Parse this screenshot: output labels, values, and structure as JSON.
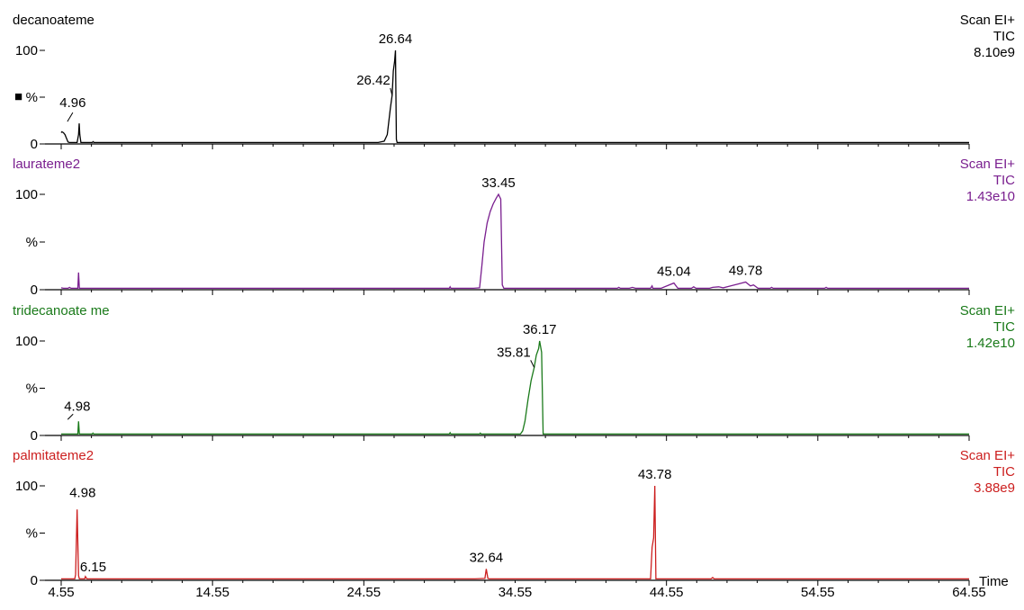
{
  "chart_data": {
    "type": "line",
    "x_axis": {
      "label": "Time",
      "min": 4.55,
      "max": 64.55,
      "ticks": [
        4.55,
        14.55,
        24.55,
        34.55,
        44.55,
        54.55,
        64.55
      ],
      "tick_labels": [
        "4.55",
        "14.55",
        "24.55",
        "34.55",
        "44.55",
        "54.55",
        "64.55"
      ]
    },
    "y_axis": {
      "min": 0,
      "max": 100,
      "tick_labels": [
        "100",
        "%",
        "0"
      ]
    },
    "marker_glyph": "■",
    "panels": [
      {
        "title": "decanoateme",
        "mode": "Scan EI+",
        "signal": "TIC",
        "intensity": "8.10e9",
        "color": "#000000",
        "trace": [
          [
            4.55,
            12
          ],
          [
            4.6,
            13
          ],
          [
            4.7,
            12
          ],
          [
            4.8,
            10
          ],
          [
            4.9,
            6
          ],
          [
            5.0,
            2
          ],
          [
            5.1,
            1.5
          ],
          [
            5.2,
            1.5
          ],
          [
            5.6,
            1.5
          ],
          [
            5.7,
            10
          ],
          [
            5.74,
            22
          ],
          [
            5.78,
            10
          ],
          [
            5.85,
            1.5
          ],
          [
            6.6,
            1.5
          ],
          [
            6.66,
            2.5
          ],
          [
            6.72,
            1.5
          ],
          [
            25.5,
            1.5
          ],
          [
            25.9,
            3
          ],
          [
            26.1,
            10
          ],
          [
            26.3,
            38
          ],
          [
            26.42,
            52
          ],
          [
            26.5,
            78
          ],
          [
            26.58,
            88
          ],
          [
            26.64,
            100
          ],
          [
            26.7,
            5
          ],
          [
            26.75,
            1.5
          ],
          [
            64.55,
            1.5
          ]
        ],
        "peaks": [
          {
            "x": 4.96,
            "y": 22,
            "label": "4.96"
          },
          {
            "x": 26.42,
            "y": 52,
            "label": "26.42"
          },
          {
            "x": 26.64,
            "y": 100,
            "label": "26.64"
          }
        ]
      },
      {
        "title": "laurateme2",
        "mode": "Scan EI+",
        "signal": "TIC",
        "intensity": "1.43e10",
        "color": "#7a1f8f",
        "trace": [
          [
            4.55,
            2
          ],
          [
            4.7,
            1.5
          ],
          [
            5.0,
            1.5
          ],
          [
            5.1,
            2.5
          ],
          [
            5.2,
            1.5
          ],
          [
            5.65,
            1.5
          ],
          [
            5.7,
            18
          ],
          [
            5.75,
            1.5
          ],
          [
            20,
            1.5
          ],
          [
            30.2,
            1.5
          ],
          [
            30.25,
            3
          ],
          [
            30.3,
            1.5
          ],
          [
            31.8,
            1.5
          ],
          [
            32.2,
            2
          ],
          [
            32.35,
            25
          ],
          [
            32.5,
            50
          ],
          [
            32.7,
            70
          ],
          [
            32.9,
            82
          ],
          [
            33.1,
            90
          ],
          [
            33.3,
            96
          ],
          [
            33.45,
            100
          ],
          [
            33.6,
            95
          ],
          [
            33.7,
            5
          ],
          [
            33.8,
            1.5
          ],
          [
            41.3,
            1.5
          ],
          [
            41.4,
            2.5
          ],
          [
            41.5,
            1.5
          ],
          [
            42.1,
            1.5
          ],
          [
            42.3,
            2.5
          ],
          [
            42.5,
            1.5
          ],
          [
            43.5,
            1.5
          ],
          [
            43.6,
            4
          ],
          [
            43.65,
            1.5
          ],
          [
            44.2,
            1.5
          ],
          [
            45.04,
            7
          ],
          [
            45.3,
            1.5
          ],
          [
            46.2,
            1.5
          ],
          [
            46.35,
            3
          ],
          [
            46.5,
            1.5
          ],
          [
            47.4,
            1.5
          ],
          [
            47.6,
            2.5
          ],
          [
            48.0,
            3
          ],
          [
            48.3,
            2
          ],
          [
            48.8,
            4
          ],
          [
            49.3,
            6
          ],
          [
            49.78,
            8
          ],
          [
            50.1,
            4
          ],
          [
            50.3,
            5
          ],
          [
            50.6,
            1.5
          ],
          [
            51.4,
            1.5
          ],
          [
            51.5,
            2.5
          ],
          [
            51.6,
            1.5
          ],
          [
            55.0,
            1.5
          ],
          [
            55.1,
            2.5
          ],
          [
            55.2,
            1.5
          ],
          [
            64.55,
            1.5
          ]
        ],
        "peaks": [
          {
            "x": 33.45,
            "y": 100,
            "label": "33.45"
          },
          {
            "x": 45.04,
            "y": 7,
            "label": "45.04"
          },
          {
            "x": 49.78,
            "y": 8,
            "label": "49.78"
          }
        ]
      },
      {
        "title": "tridecanoate me",
        "mode": "Scan EI+",
        "signal": "TIC",
        "intensity": "1.42e10",
        "color": "#1a7a1a",
        "trace": [
          [
            4.55,
            1.5
          ],
          [
            5.65,
            1.5
          ],
          [
            5.7,
            15
          ],
          [
            5.75,
            1.5
          ],
          [
            6.6,
            1.5
          ],
          [
            6.65,
            2.5
          ],
          [
            6.7,
            1.5
          ],
          [
            30.2,
            1.5
          ],
          [
            30.25,
            3
          ],
          [
            30.3,
            1.5
          ],
          [
            32.2,
            1.5
          ],
          [
            32.25,
            2.5
          ],
          [
            32.3,
            1.5
          ],
          [
            34.9,
            1.5
          ],
          [
            35.05,
            5
          ],
          [
            35.2,
            15
          ],
          [
            35.4,
            38
          ],
          [
            35.6,
            58
          ],
          [
            35.81,
            72
          ],
          [
            35.95,
            85
          ],
          [
            36.1,
            92
          ],
          [
            36.17,
            100
          ],
          [
            36.3,
            88
          ],
          [
            36.4,
            1.5
          ],
          [
            64.55,
            1.5
          ]
        ],
        "peaks": [
          {
            "x": 4.98,
            "y": 15,
            "label": "4.98"
          },
          {
            "x": 35.81,
            "y": 72,
            "label": "35.81"
          },
          {
            "x": 36.17,
            "y": 100,
            "label": "36.17"
          }
        ]
      },
      {
        "title": "palmitateme2",
        "mode": "Scan EI+",
        "signal": "TIC",
        "intensity": "3.88e9",
        "color": "#cc1f1f",
        "trace": [
          [
            4.55,
            1.5
          ],
          [
            5.45,
            1.5
          ],
          [
            5.5,
            6
          ],
          [
            5.6,
            75
          ],
          [
            5.7,
            5
          ],
          [
            5.75,
            1.5
          ],
          [
            6.1,
            1.5
          ],
          [
            6.15,
            4
          ],
          [
            6.25,
            1.5
          ],
          [
            31.9,
            1.5
          ],
          [
            32.55,
            2
          ],
          [
            32.64,
            12
          ],
          [
            32.75,
            2
          ],
          [
            32.85,
            1.5
          ],
          [
            43.5,
            1.5
          ],
          [
            43.6,
            35
          ],
          [
            43.7,
            45
          ],
          [
            43.78,
            100
          ],
          [
            43.85,
            1.5
          ],
          [
            47.5,
            1.5
          ],
          [
            47.6,
            3
          ],
          [
            47.7,
            1.5
          ],
          [
            64.55,
            1.5
          ]
        ],
        "peaks": [
          {
            "x": 4.98,
            "y": 75,
            "label": "4.98"
          },
          {
            "x": 6.15,
            "y": 4,
            "label": "6.15"
          },
          {
            "x": 32.64,
            "y": 12,
            "label": "32.64"
          },
          {
            "x": 43.78,
            "y": 100,
            "label": "43.78"
          }
        ]
      }
    ]
  }
}
